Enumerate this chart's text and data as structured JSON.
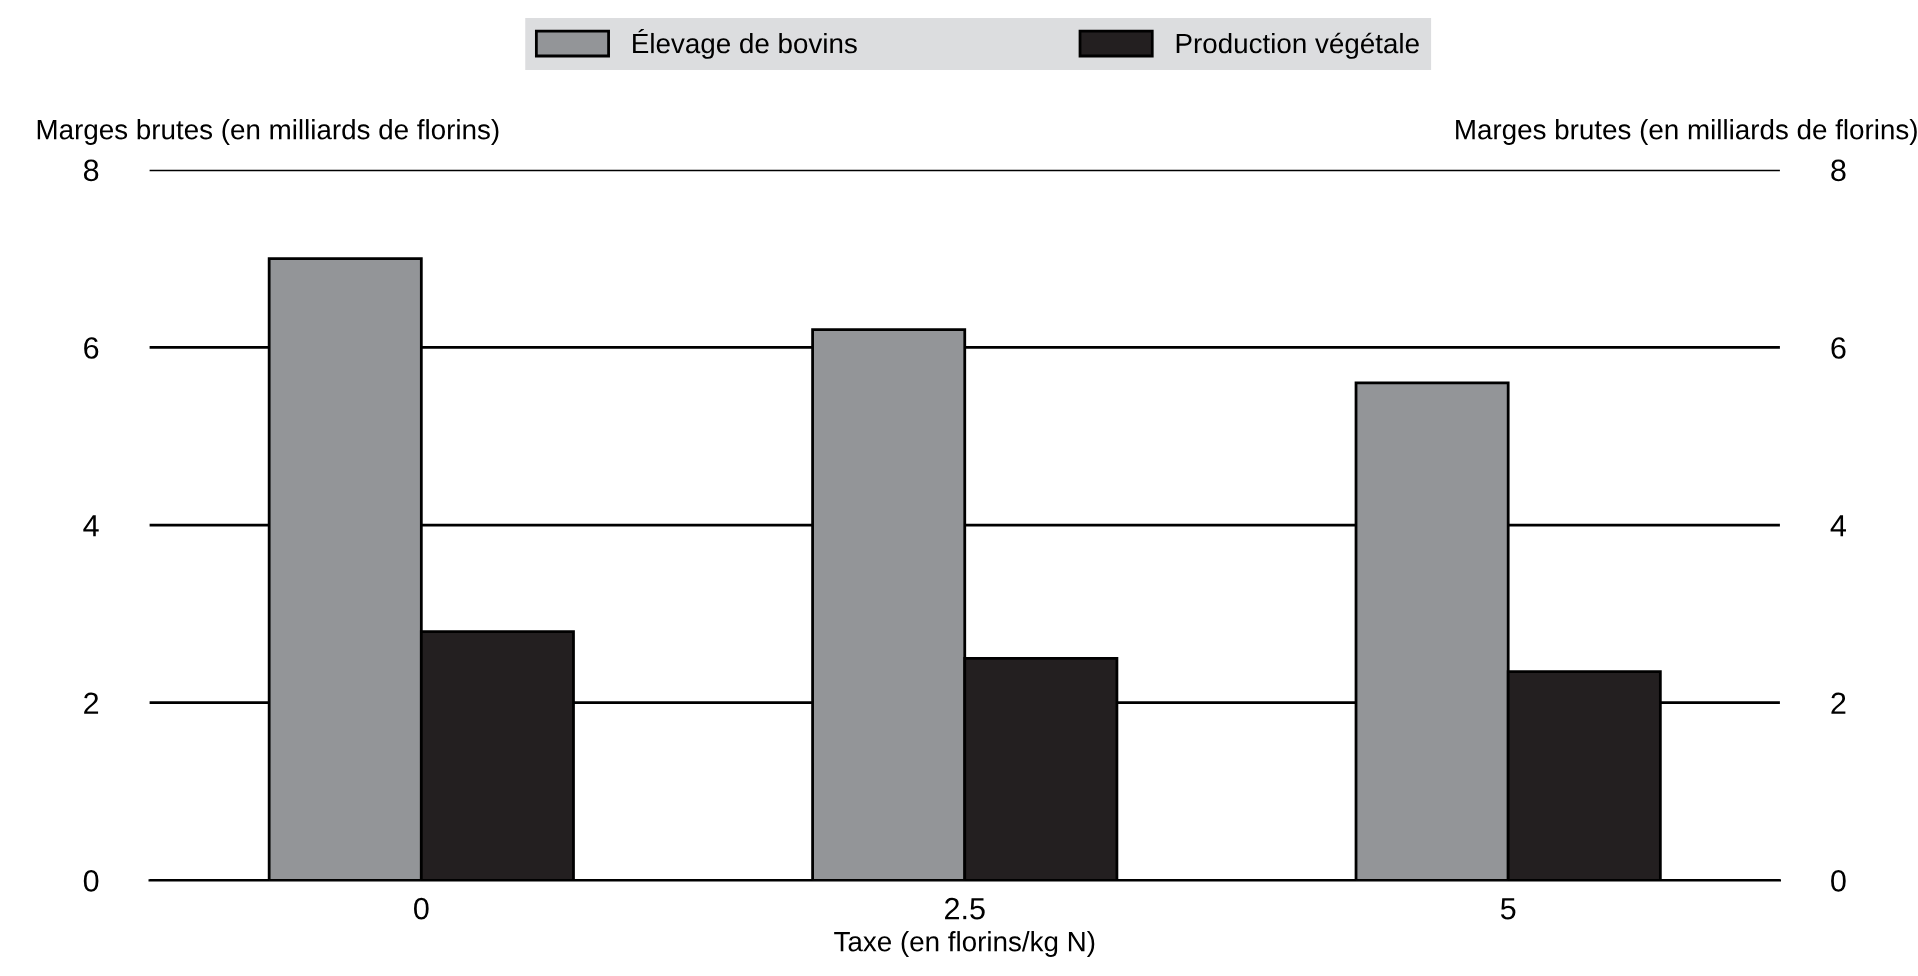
{
  "chart_data": {
    "type": "bar",
    "xlabel": "Taxe (en florins/kg N)",
    "ylabel": "Marges brutes (en milliards de florins)",
    "y2label": "Marges brutes (en milliards de florins)",
    "categories": [
      "0",
      "2.5",
      "5"
    ],
    "series": [
      {
        "name": "Élevage de bovins",
        "color": "#939598",
        "values": [
          7.0,
          6.2,
          5.6
        ]
      },
      {
        "name": "Production végétale",
        "color": "#231f20",
        "values": [
          2.8,
          2.5,
          2.35
        ]
      }
    ],
    "ylim": [
      0,
      8
    ],
    "yticks": [
      0,
      2,
      4,
      6,
      8
    ],
    "y2lim": [
      0,
      8
    ],
    "y2ticks": [
      0,
      2,
      4,
      6,
      8
    ],
    "grid": "y",
    "legend": "top"
  }
}
